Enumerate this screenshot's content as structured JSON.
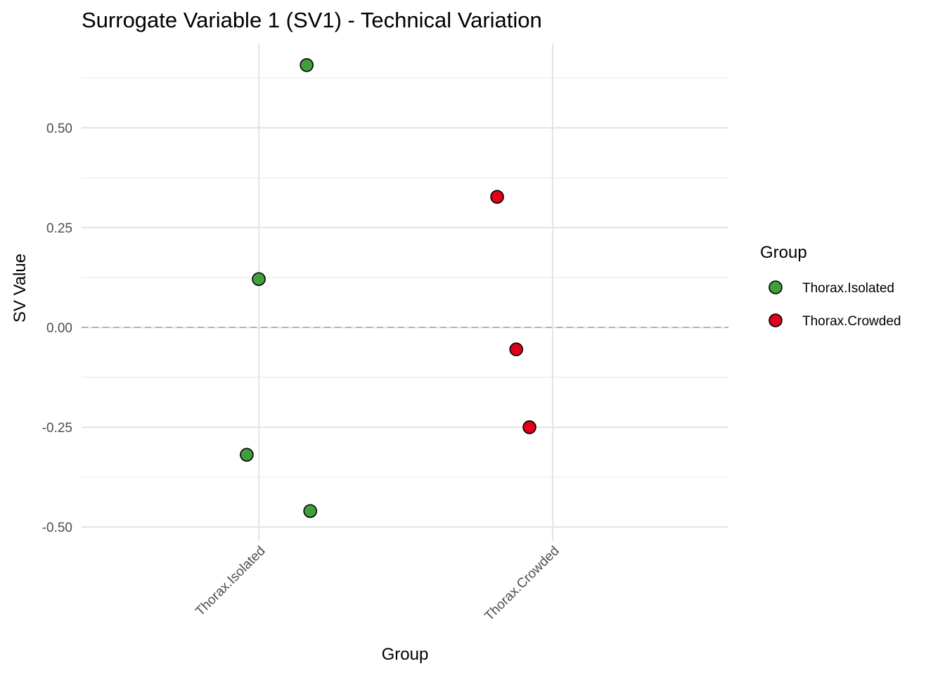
{
  "chart_data": {
    "type": "scatter",
    "title": "Surrogate Variable 1 (SV1) - Technical Variation",
    "xlabel": "Group",
    "ylabel": "SV Value",
    "categories": [
      "Thorax.Isolated",
      "Thorax.Crowded"
    ],
    "ylim": [
      -0.535,
      0.711
    ],
    "yticks": [
      -0.5,
      -0.25,
      0,
      0.25,
      0.5
    ],
    "ytick_labels": [
      "-0.50",
      "-0.25",
      "0.00",
      "0.25",
      "0.50"
    ],
    "reference_line": {
      "y": 0,
      "style": "dashed"
    },
    "grid": true,
    "legend": {
      "title": "Group",
      "position": "right",
      "entries": [
        "Thorax.Isolated",
        "Thorax.Crowded"
      ]
    },
    "colors": {
      "Thorax.Isolated": "#3fa03a",
      "Thorax.Crowded": "#e0001a"
    },
    "series": [
      {
        "name": "Thorax.Isolated",
        "points": [
          {
            "category": "Thorax.Isolated",
            "jitter": 0.163,
            "y": 0.657
          },
          {
            "category": "Thorax.Isolated",
            "jitter": 0.0,
            "y": 0.121
          },
          {
            "category": "Thorax.Isolated",
            "jitter": -0.041,
            "y": -0.319
          },
          {
            "category": "Thorax.Isolated",
            "jitter": 0.175,
            "y": -0.46
          }
        ]
      },
      {
        "name": "Thorax.Crowded",
        "points": [
          {
            "category": "Thorax.Crowded",
            "jitter": -0.189,
            "y": 0.327
          },
          {
            "category": "Thorax.Crowded",
            "jitter": -0.124,
            "y": -0.055
          },
          {
            "category": "Thorax.Crowded",
            "jitter": -0.079,
            "y": -0.25
          }
        ]
      }
    ]
  }
}
